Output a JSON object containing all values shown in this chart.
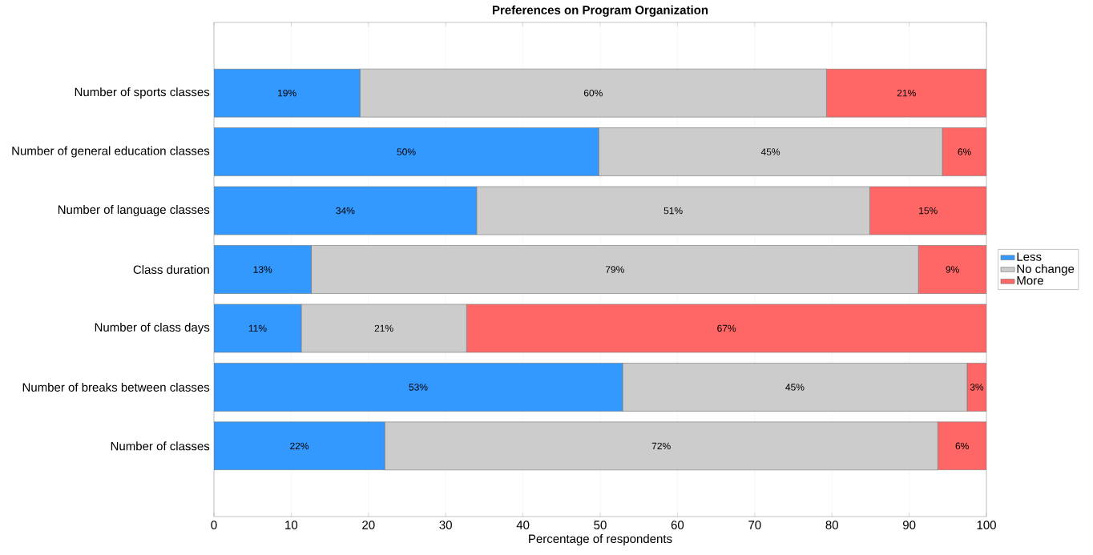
{
  "chart_data": {
    "type": "bar",
    "orientation": "horizontal",
    "stacked": true,
    "title": "Preferences on Program Organization",
    "xlabel": "Percentage of respondents",
    "categories": [
      "Number of sports classes",
      "Number of general education classes",
      "Number of language classes",
      "Class duration",
      "Number of class days",
      "Number of breaks between classes",
      "Number of classes"
    ],
    "series": [
      {
        "name": "Less",
        "color": "#3399ff",
        "values": [
          18.9,
          49.8,
          34.0,
          12.6,
          11.3,
          52.9,
          22.1
        ],
        "value_labels": [
          "19%",
          "50%",
          "34%",
          "13%",
          "11%",
          "53%",
          "22%"
        ]
      },
      {
        "name": "No change",
        "color": "#cccccc",
        "values": [
          60.4,
          44.5,
          50.9,
          78.6,
          21.4,
          44.6,
          71.6
        ],
        "value_labels": [
          "60%",
          "45%",
          "51%",
          "79%",
          "21%",
          "45%",
          "72%"
        ]
      },
      {
        "name": "More",
        "color": "#ff6666",
        "values": [
          20.7,
          5.7,
          15.1,
          8.8,
          67.3,
          2.5,
          6.3
        ],
        "value_labels": [
          "21%",
          "6%",
          "15%",
          "9%",
          "67%",
          "3%",
          "6%"
        ]
      }
    ],
    "xlim": [
      0,
      100
    ],
    "xticks": [
      0,
      10,
      20,
      30,
      40,
      50,
      60,
      70,
      80,
      90,
      100
    ],
    "grid": "x",
    "legend": "right"
  }
}
